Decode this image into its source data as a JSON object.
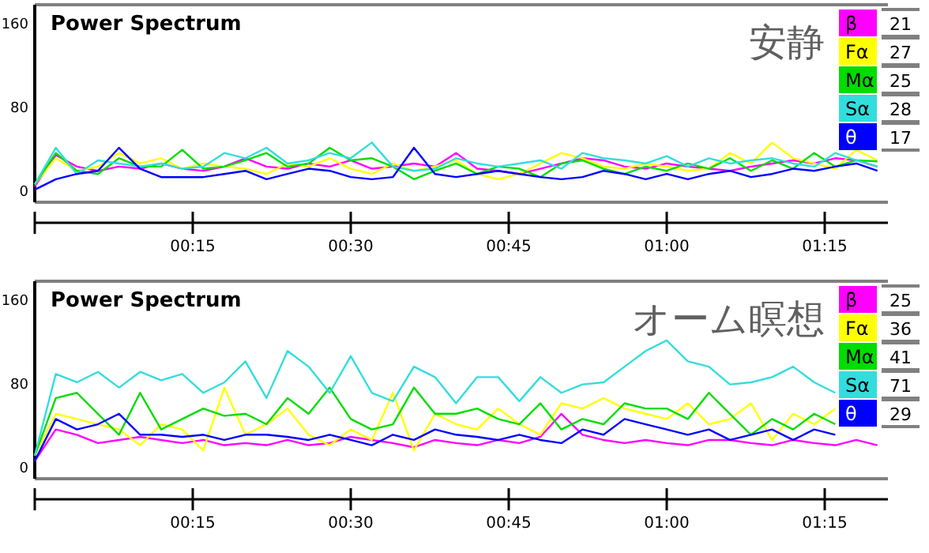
{
  "chart_data": [
    {
      "type": "line",
      "title": "Power Spectrum",
      "subtitle": "安静",
      "legend": "top right",
      "x": [
        0,
        2,
        4,
        6,
        8,
        10,
        12,
        14,
        16,
        18,
        20,
        22,
        24,
        26,
        28,
        30,
        32,
        34,
        36,
        38,
        40,
        42,
        44,
        46,
        48,
        50,
        52,
        54,
        56,
        58,
        60,
        62,
        64,
        66,
        68,
        70,
        72,
        74,
        76,
        78,
        80
      ],
      "xlim": [
        0,
        81
      ],
      "xticks": [
        {
          "value": 0,
          "label": null
        },
        {
          "value": 15,
          "label": "00:15"
        },
        {
          "value": 30,
          "label": "00:30"
        },
        {
          "value": 45,
          "label": "00:45"
        },
        {
          "value": 60,
          "label": "01:00"
        },
        {
          "value": 75,
          "label": "01:15"
        }
      ],
      "ylim": [
        -12,
        175
      ],
      "yticks": [
        0,
        80,
        160
      ],
      "annotations": [
        "21",
        "27",
        "25",
        "28",
        "17"
      ],
      "series": [
        {
          "name": "β",
          "color": "#ff00ff",
          "values": [
            3,
            33,
            22,
            18,
            22,
            20,
            25,
            20,
            18,
            22,
            30,
            22,
            20,
            25,
            22,
            28,
            20,
            22,
            25,
            22,
            35,
            20,
            18,
            15,
            20,
            25,
            30,
            28,
            22,
            20,
            25,
            22,
            20,
            18,
            22,
            25,
            28,
            25,
            30,
            28,
            22
          ]
        },
        {
          "name": "Fα",
          "color": "#ffff00",
          "values": [
            5,
            30,
            18,
            22,
            35,
            25,
            30,
            20,
            25,
            22,
            20,
            15,
            25,
            22,
            30,
            20,
            15,
            25,
            18,
            22,
            28,
            15,
            10,
            15,
            25,
            35,
            30,
            22,
            20,
            25,
            22,
            18,
            20,
            35,
            25,
            45,
            30,
            25,
            20,
            38,
            28
          ]
        },
        {
          "name": "Mα",
          "color": "#00dd00",
          "values": [
            5,
            35,
            18,
            15,
            30,
            22,
            22,
            38,
            20,
            22,
            28,
            35,
            22,
            25,
            40,
            28,
            30,
            22,
            10,
            18,
            25,
            15,
            22,
            20,
            12,
            25,
            28,
            20,
            15,
            22,
            18,
            25,
            20,
            30,
            18,
            28,
            20,
            35,
            22,
            28,
            27
          ]
        },
        {
          "name": "Sα",
          "color": "#33dddd",
          "values": [
            5,
            40,
            15,
            28,
            25,
            22,
            25,
            20,
            22,
            35,
            30,
            40,
            25,
            28,
            35,
            30,
            45,
            22,
            18,
            20,
            30,
            25,
            22,
            25,
            28,
            20,
            35,
            30,
            28,
            25,
            32,
            22,
            30,
            25,
            28,
            30,
            25,
            22,
            35,
            28,
            22
          ]
        },
        {
          "name": "θ",
          "color": "#0000ff",
          "values": [
            0,
            10,
            15,
            18,
            40,
            20,
            12,
            12,
            12,
            15,
            18,
            10,
            15,
            20,
            18,
            12,
            10,
            12,
            40,
            15,
            12,
            15,
            18,
            15,
            12,
            10,
            12,
            18,
            15,
            10,
            15,
            10,
            15,
            18,
            12,
            15,
            20,
            18,
            22,
            25,
            18
          ]
        }
      ]
    },
    {
      "type": "line",
      "title": "Power Spectrum",
      "subtitle": "オーム瞑想",
      "legend": "top right",
      "x": [
        0,
        2,
        4,
        6,
        8,
        10,
        12,
        14,
        16,
        18,
        20,
        22,
        24,
        26,
        28,
        30,
        32,
        34,
        36,
        38,
        40,
        42,
        44,
        46,
        48,
        50,
        52,
        54,
        56,
        58,
        60,
        62,
        64,
        66,
        68,
        70,
        72,
        74,
        76,
        78,
        80
      ],
      "xlim": [
        0,
        81
      ],
      "xticks": [
        {
          "value": 0,
          "label": null
        },
        {
          "value": 15,
          "label": "00:15"
        },
        {
          "value": 30,
          "label": "00:30"
        },
        {
          "value": 45,
          "label": "00:45"
        },
        {
          "value": 60,
          "label": "01:00"
        },
        {
          "value": 75,
          "label": "01:15"
        }
      ],
      "ylim": [
        -12,
        175
      ],
      "yticks": [
        0,
        80,
        160
      ],
      "annotations": [
        "25",
        "36",
        "41",
        "71",
        "29"
      ],
      "series": [
        {
          "name": "β",
          "color": "#ff00ff",
          "values": [
            5,
            35,
            30,
            22,
            25,
            28,
            25,
            22,
            25,
            20,
            22,
            20,
            25,
            20,
            22,
            28,
            25,
            22,
            18,
            25,
            22,
            20,
            25,
            22,
            28,
            50,
            30,
            25,
            22,
            25,
            22,
            20,
            25,
            25,
            22,
            20,
            25,
            22,
            20,
            25,
            20
          ]
        },
        {
          "name": "Fα",
          "color": "#ffff00",
          "values": [
            10,
            50,
            45,
            40,
            35,
            20,
            40,
            35,
            15,
            75,
            30,
            40,
            55,
            30,
            20,
            35,
            25,
            70,
            15,
            50,
            40,
            35,
            55,
            40,
            30,
            60,
            55,
            65,
            55,
            50,
            45,
            60,
            40,
            45,
            60,
            25,
            50,
            40,
            55,
            null,
            null
          ]
        },
        {
          "name": "Mα",
          "color": "#00dd00",
          "values": [
            10,
            65,
            70,
            50,
            30,
            70,
            35,
            45,
            55,
            48,
            50,
            40,
            65,
            50,
            75,
            45,
            35,
            40,
            75,
            50,
            50,
            55,
            45,
            40,
            60,
            35,
            45,
            40,
            60,
            55,
            55,
            45,
            70,
            50,
            30,
            45,
            35,
            50,
            40,
            null,
            null
          ]
        },
        {
          "name": "Sα",
          "color": "#33dddd",
          "values": [
            10,
            88,
            80,
            90,
            75,
            90,
            82,
            88,
            70,
            80,
            100,
            65,
            110,
            95,
            70,
            105,
            70,
            62,
            95,
            85,
            60,
            85,
            85,
            62,
            85,
            70,
            78,
            80,
            95,
            110,
            120,
            100,
            95,
            78,
            80,
            85,
            95,
            80,
            70,
            null,
            null
          ]
        },
        {
          "name": "θ",
          "color": "#0000ff",
          "values": [
            5,
            45,
            35,
            40,
            50,
            30,
            30,
            28,
            30,
            25,
            30,
            30,
            28,
            25,
            30,
            25,
            20,
            30,
            25,
            35,
            30,
            28,
            25,
            30,
            25,
            22,
            35,
            30,
            45,
            40,
            35,
            30,
            35,
            25,
            30,
            35,
            25,
            35,
            30,
            null,
            null
          ]
        }
      ]
    }
  ]
}
